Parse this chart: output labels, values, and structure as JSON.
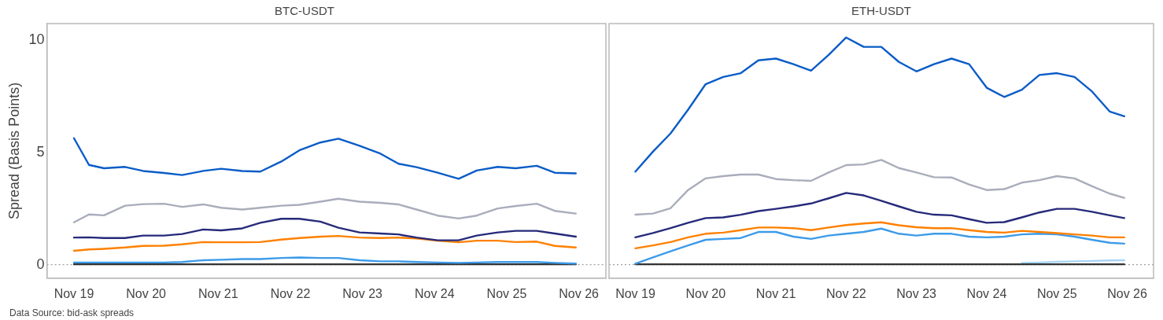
{
  "chart_data": [
    {
      "type": "line",
      "title": "BTC-USDT",
      "ylabel": "Spread (Basis Points)",
      "annotations": [
        "Data Source: bid-ask spreads"
      ],
      "marker": "none",
      "line_style": "solid",
      "grid": false,
      "legend": false,
      "x": [
        "--11-19T00:00",
        "--11-19T05:00",
        "--11-19T10:00",
        "--11-19T17:00",
        "--11-19T23:00",
        "--11-20T06:00",
        "--11-20T12:00",
        "--11-20T19:00",
        "--11-21T01:00",
        "--11-21T08:00",
        "--11-21T14:00",
        "--11-21T21:00",
        "--11-22T03:00",
        "--11-22T10:00",
        "--11-22T16:00",
        "--11-22T23:00",
        "--11-23T06:00",
        "--11-23T12:00",
        "--11-23T18:00",
        "--11-24T01:00",
        "--11-24T08:00",
        "--11-24T14:00",
        "--11-24T21:00",
        "--11-25T03:00",
        "--11-25T10:00",
        "--11-25T16:00",
        "--11-25T23:00"
      ],
      "xlim": [
        "--11-18T15:00",
        "--11-26T09:00"
      ],
      "xticks": [
        {
          "value": "--11-19",
          "label": "Nov 19"
        },
        {
          "value": "--11-20",
          "label": "Nov 20"
        },
        {
          "value": "--11-21",
          "label": "Nov 21"
        },
        {
          "value": "--11-22",
          "label": "Nov 22"
        },
        {
          "value": "--11-23",
          "label": "Nov 23"
        },
        {
          "value": "--11-24",
          "label": "Nov 24"
        },
        {
          "value": "--11-25",
          "label": "Nov 25"
        },
        {
          "value": "--11-26",
          "label": "Nov 26"
        }
      ],
      "ylim": [
        -0.6,
        10.75
      ],
      "yticks": [
        0,
        5,
        10
      ],
      "ref_lines": [
        {
          "axis": "y",
          "value": 0,
          "color": "#888888",
          "line_style": "dotted"
        }
      ],
      "series": [
        {
          "color": "#0a5cc7",
          "values": [
            5.64,
            4.45,
            4.3,
            4.36,
            4.18,
            4.09,
            4.0,
            4.18,
            4.28,
            4.18,
            4.15,
            4.6,
            5.1,
            5.45,
            5.62,
            5.3,
            4.95,
            4.5,
            4.35,
            4.1,
            3.83,
            4.2,
            4.36,
            4.3,
            4.41,
            4.1,
            4.07
          ]
        },
        {
          "color": "#a9adbb",
          "values": [
            1.89,
            2.24,
            2.2,
            2.63,
            2.7,
            2.72,
            2.58,
            2.69,
            2.54,
            2.46,
            2.54,
            2.63,
            2.67,
            2.81,
            2.94,
            2.81,
            2.76,
            2.69,
            2.46,
            2.19,
            2.06,
            2.19,
            2.51,
            2.62,
            2.72,
            2.4,
            2.28
          ]
        },
        {
          "color": "#262a7a",
          "values": [
            1.21,
            1.22,
            1.19,
            1.19,
            1.3,
            1.3,
            1.37,
            1.57,
            1.53,
            1.62,
            1.87,
            2.05,
            2.05,
            1.92,
            1.65,
            1.44,
            1.39,
            1.35,
            1.21,
            1.09,
            1.09,
            1.3,
            1.44,
            1.51,
            1.51,
            1.39,
            1.25
          ]
        },
        {
          "color": "#ff8000",
          "values": [
            0.62,
            0.68,
            0.71,
            0.77,
            0.84,
            0.85,
            0.91,
            1.01,
            1.0,
            1.0,
            1.01,
            1.12,
            1.19,
            1.25,
            1.28,
            1.21,
            1.19,
            1.21,
            1.17,
            1.07,
            1.0,
            1.07,
            1.07,
            1.01,
            1.03,
            0.84,
            0.77
          ]
        },
        {
          "color": "#3d9be9",
          "values": [
            0.1,
            0.1,
            0.1,
            0.1,
            0.1,
            0.1,
            0.12,
            0.2,
            0.22,
            0.25,
            0.25,
            0.3,
            0.32,
            0.3,
            0.3,
            0.2,
            0.15,
            0.15,
            0.12,
            0.1,
            0.08,
            0.1,
            0.12,
            0.12,
            0.12,
            0.08,
            0.05
          ]
        },
        {
          "color": "#333333",
          "values": [
            0.02,
            0.02,
            0.02,
            0.02,
            0.02,
            0.02,
            0.02,
            0.02,
            0.02,
            0.02,
            0.02,
            0.02,
            0.02,
            0.02,
            0.02,
            0.02,
            0.02,
            0.02,
            0.02,
            0.02,
            0.02,
            0.02,
            0.02,
            0.02,
            0.02,
            0.02,
            0.02
          ]
        }
      ]
    },
    {
      "type": "line",
      "title": "ETH-USDT",
      "marker": "none",
      "line_style": "solid",
      "grid": false,
      "legend": false,
      "tick_labels": "x",
      "x": [
        "--11-19T00:00",
        "--11-19T06:00",
        "--11-19T12:00",
        "--11-19T18:00",
        "--11-20T00:00",
        "--11-20T06:00",
        "--11-20T12:00",
        "--11-20T18:00",
        "--11-21T00:00",
        "--11-21T06:00",
        "--11-21T12:00",
        "--11-21T18:00",
        "--11-22T00:00",
        "--11-22T06:00",
        "--11-22T12:00",
        "--11-22T18:00",
        "--11-23T00:00",
        "--11-23T06:00",
        "--11-23T12:00",
        "--11-23T18:00",
        "--11-24T00:00",
        "--11-24T06:00",
        "--11-24T12:00",
        "--11-24T18:00",
        "--11-25T00:00",
        "--11-25T06:00",
        "--11-25T12:00",
        "--11-25T18:00",
        "--11-25T23:00"
      ],
      "xlim": [
        "--11-18T15:00",
        "--11-26T09:00"
      ],
      "xticks": [
        {
          "value": "--11-19",
          "label": "Nov 19"
        },
        {
          "value": "--11-20",
          "label": "Nov 20"
        },
        {
          "value": "--11-21",
          "label": "Nov 21"
        },
        {
          "value": "--11-22",
          "label": "Nov 22"
        },
        {
          "value": "--11-23",
          "label": "Nov 23"
        },
        {
          "value": "--11-24",
          "label": "Nov 24"
        },
        {
          "value": "--11-25",
          "label": "Nov 25"
        },
        {
          "value": "--11-26",
          "label": "Nov 26"
        }
      ],
      "ylim": [
        -0.6,
        10.75
      ],
      "yticks": [
        0,
        5,
        10
      ],
      "ref_lines": [
        {
          "axis": "y",
          "value": 0,
          "color": "#888888",
          "line_style": "dotted"
        }
      ],
      "series": [
        {
          "color": "#0a5cc7",
          "values": [
            4.15,
            5.04,
            5.85,
            6.91,
            8.05,
            8.37,
            8.54,
            9.11,
            9.19,
            8.94,
            8.65,
            9.35,
            10.13,
            9.71,
            9.71,
            9.04,
            8.62,
            8.94,
            9.19,
            8.94,
            7.89,
            7.48,
            7.8,
            8.46,
            8.54,
            8.37,
            7.72,
            6.83,
            6.62
          ]
        },
        {
          "color": "#a9adbb",
          "values": [
            2.23,
            2.28,
            2.52,
            3.33,
            3.85,
            3.95,
            4.02,
            4.02,
            3.82,
            3.77,
            3.74,
            4.11,
            4.44,
            4.47,
            4.67,
            4.31,
            4.11,
            3.9,
            3.89,
            3.58,
            3.33,
            3.37,
            3.66,
            3.77,
            3.95,
            3.85,
            3.5,
            3.17,
            2.98
          ]
        },
        {
          "color": "#262a7a",
          "values": [
            1.22,
            1.41,
            1.63,
            1.87,
            2.08,
            2.11,
            2.23,
            2.39,
            2.49,
            2.6,
            2.73,
            2.96,
            3.2,
            3.09,
            2.85,
            2.6,
            2.36,
            2.23,
            2.2,
            2.03,
            1.87,
            1.9,
            2.11,
            2.33,
            2.49,
            2.49,
            2.36,
            2.2,
            2.08
          ]
        },
        {
          "color": "#ff8000",
          "values": [
            0.73,
            0.86,
            1.01,
            1.22,
            1.38,
            1.43,
            1.54,
            1.66,
            1.66,
            1.63,
            1.54,
            1.66,
            1.77,
            1.84,
            1.89,
            1.76,
            1.67,
            1.63,
            1.63,
            1.54,
            1.46,
            1.43,
            1.51,
            1.46,
            1.41,
            1.35,
            1.3,
            1.22,
            1.22
          ]
        },
        {
          "color": "#3d9be9",
          "values": [
            0.05,
            0.33,
            0.6,
            0.86,
            1.11,
            1.15,
            1.19,
            1.46,
            1.46,
            1.25,
            1.15,
            1.3,
            1.38,
            1.46,
            1.61,
            1.38,
            1.3,
            1.38,
            1.38,
            1.25,
            1.22,
            1.25,
            1.35,
            1.38,
            1.35,
            1.25,
            1.11,
            0.98,
            0.94
          ]
        },
        {
          "color": "#333333",
          "values": [
            0.02,
            0.02,
            0.02,
            0.02,
            0.02,
            0.02,
            0.02,
            0.02,
            0.02,
            0.02,
            0.02,
            0.02,
            0.02,
            0.02,
            0.02,
            0.02,
            0.02,
            0.02,
            0.02,
            0.02,
            0.02,
            0.02,
            0.02,
            0.02,
            0.02,
            0.02,
            0.02,
            0.02,
            0.02
          ]
        },
        {
          "color": "#a8d4f5",
          "values": [
            null,
            null,
            null,
            null,
            null,
            null,
            null,
            null,
            null,
            null,
            null,
            null,
            null,
            null,
            null,
            null,
            null,
            null,
            null,
            null,
            null,
            null,
            0.08,
            0.1,
            0.13,
            0.15,
            0.17,
            0.19,
            0.2
          ]
        }
      ]
    }
  ]
}
